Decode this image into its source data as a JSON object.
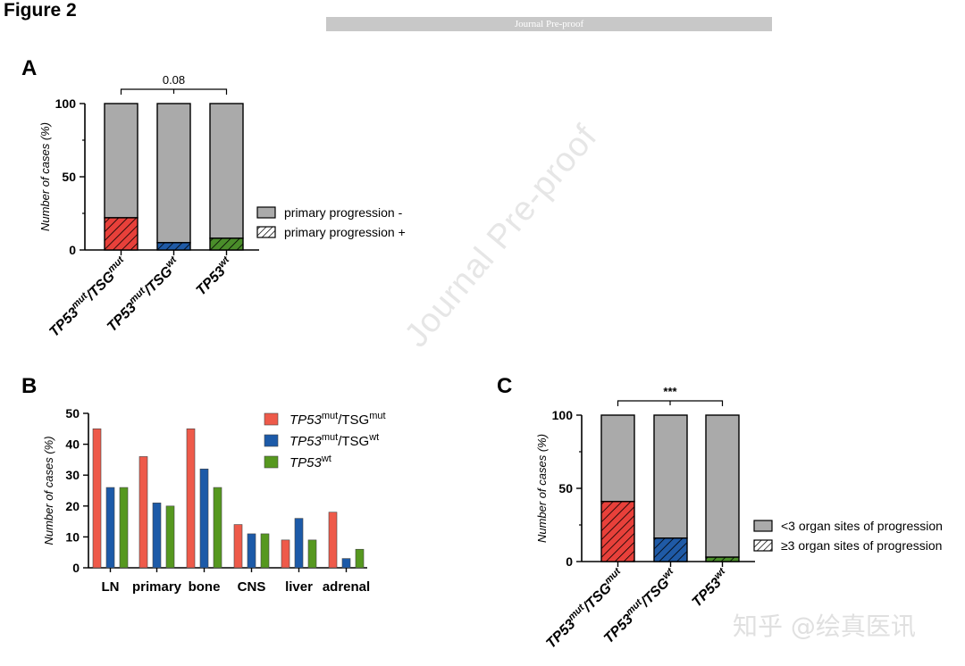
{
  "figure_title": "Figure 2",
  "banner_text": "Journal Pre-proof",
  "watermark_text": "Journal Pre-proof",
  "corner_mark_text": "知乎 @绘真医讯",
  "colors": {
    "red": "#e8403a",
    "blue": "#1f5aa6",
    "green": "#4a8d2a",
    "gray": "#aaaaaa",
    "bar_red": "#ee5a4a",
    "bar_blue": "#1c5aa8",
    "bar_green": "#56981f"
  },
  "chart_data": [
    {
      "panel": "A",
      "type": "bar",
      "stacked": true,
      "ylabel": "Number of cases (%)",
      "ylim": [
        0,
        100
      ],
      "yticks": [
        "0",
        "50",
        "100"
      ],
      "categories": [
        {
          "base": "TP53",
          "sup": "mut",
          "mid": "/TSG",
          "sup2": "mut"
        },
        {
          "base": "TP53",
          "sup": "mut",
          "mid": "/TSG",
          "sup2": "wt"
        },
        {
          "base": "TP53",
          "sup": "wt",
          "mid": "",
          "sup2": ""
        }
      ],
      "series": [
        {
          "name": "primary progression +",
          "values": [
            22,
            5,
            8
          ]
        },
        {
          "name": "primary progression -",
          "values": [
            78,
            95,
            92
          ]
        }
      ],
      "significance": "0.08",
      "legend": [
        "primary progression -",
        "primary progression +"
      ],
      "legend_position": "right"
    },
    {
      "panel": "B",
      "type": "bar",
      "ylabel": "Number of cases (%)",
      "ylim": [
        0,
        50
      ],
      "yticks": [
        "0",
        "10",
        "20",
        "30",
        "40",
        "50"
      ],
      "categories": [
        "LN",
        "primary",
        "bone",
        "CNS",
        "liver",
        "adrenal"
      ],
      "series": [
        {
          "name": {
            "base": "TP53",
            "sup": "mut",
            "mid": "/TSG",
            "sup2": "mut"
          },
          "values": [
            45,
            36,
            45,
            14,
            9,
            18
          ]
        },
        {
          "name": {
            "base": "TP53",
            "sup": "mut",
            "mid": "/TSG",
            "sup2": "wt"
          },
          "values": [
            26,
            21,
            32,
            11,
            16,
            3
          ]
        },
        {
          "name": {
            "base": "TP53",
            "sup": "wt",
            "mid": "",
            "sup2": ""
          },
          "values": [
            26,
            20,
            26,
            11,
            9,
            6
          ]
        }
      ],
      "legend_position": "top-right"
    },
    {
      "panel": "C",
      "type": "bar",
      "stacked": true,
      "ylabel": "Number of cases (%)",
      "ylim": [
        0,
        100
      ],
      "yticks": [
        "0",
        "50",
        "100"
      ],
      "categories": [
        {
          "base": "TP53",
          "sup": "mut",
          "mid": "/TSG",
          "sup2": "mut"
        },
        {
          "base": "TP53",
          "sup": "mut",
          "mid": "/TSG",
          "sup2": "wt"
        },
        {
          "base": "TP53",
          "sup": "wt",
          "mid": "",
          "sup2": ""
        }
      ],
      "series": [
        {
          "name": "≥3 organ sites of progression",
          "values": [
            41,
            16,
            3
          ]
        },
        {
          "name": "<3 organ sites of progression",
          "values": [
            59,
            84,
            97
          ]
        }
      ],
      "significance": "***",
      "legend": [
        "<3 organ sites of progression",
        "≥3 organ sites of progression"
      ],
      "legend_position": "right"
    }
  ]
}
